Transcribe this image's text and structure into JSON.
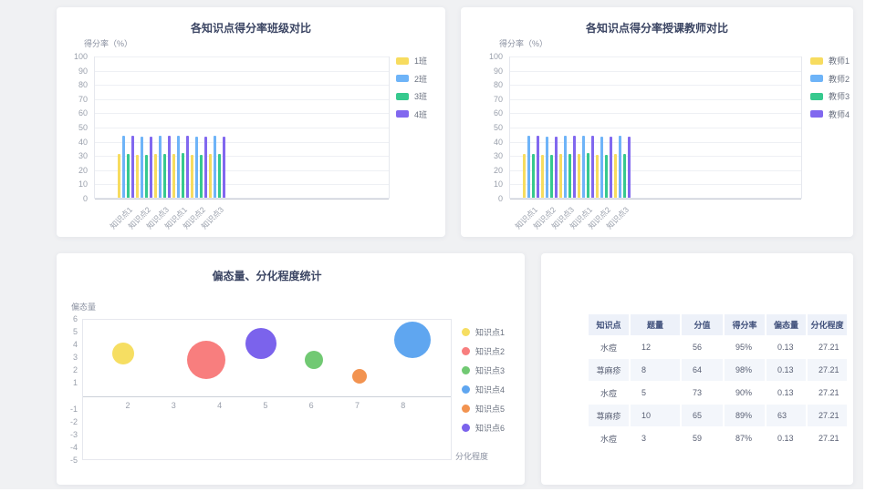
{
  "page": {
    "background": "#f0f1f3",
    "card_color": "#ffffff"
  },
  "chart_data": [
    {
      "type": "bar",
      "title": "各知识点得分率班级对比",
      "ylabel": "得分率（%）",
      "ylim": [
        0,
        100
      ],
      "y_ticks": [
        100,
        90,
        80,
        70,
        60,
        50,
        40,
        30,
        20,
        10,
        0
      ],
      "grid": "horizontal",
      "legend_position": "right",
      "categories": [
        "知识点1",
        "知识点2",
        "知识点3",
        "知识点1",
        "知识点2",
        "知识点3"
      ],
      "series": [
        {
          "name": "1班",
          "color": "#F7DC5F",
          "values": [
            31.5,
            31,
            31.5,
            31.5,
            31,
            31.5
          ]
        },
        {
          "name": "2班",
          "color": "#6EB4F8",
          "values": [
            44,
            43.5,
            44,
            44,
            43.5,
            44
          ]
        },
        {
          "name": "3班",
          "color": "#36C98E",
          "values": [
            31.5,
            31,
            31.5,
            32,
            31,
            31.5
          ]
        },
        {
          "name": "4班",
          "color": "#8168EF",
          "values": [
            44,
            43.5,
            44,
            44,
            43.5,
            43.5
          ]
        }
      ]
    },
    {
      "type": "bar",
      "title": "各知识点得分率授课教师对比",
      "ylabel": "得分率（%）",
      "ylim": [
        0,
        100
      ],
      "y_ticks": [
        100,
        90,
        80,
        70,
        60,
        50,
        40,
        30,
        20,
        10,
        0
      ],
      "grid": "horizontal",
      "legend_position": "right",
      "categories": [
        "知识点1",
        "知识点2",
        "知识点3",
        "知识点1",
        "知识点2",
        "知识点3"
      ],
      "series": [
        {
          "name": "教师1",
          "color": "#F7DC5F",
          "values": [
            31.5,
            31,
            31.5,
            31.5,
            31,
            31.5
          ]
        },
        {
          "name": "教师2",
          "color": "#6EB4F8",
          "values": [
            44,
            43.5,
            44,
            44,
            43.5,
            44
          ]
        },
        {
          "name": "教师3",
          "color": "#36C98E",
          "values": [
            31.5,
            31,
            31.5,
            32,
            31,
            31.5
          ]
        },
        {
          "name": "教师4",
          "color": "#8168EF",
          "values": [
            44,
            43.5,
            44,
            44,
            43.5,
            43.5
          ]
        }
      ]
    },
    {
      "type": "scatter",
      "title": "偏态量、分化程度统计",
      "ylabel": "偏态量",
      "xlabel": "分化程度",
      "xlim": [
        1,
        9
      ],
      "ylim": [
        -5,
        6
      ],
      "x_ticks": [
        2,
        3,
        4,
        5,
        6,
        7,
        8
      ],
      "y_ticks": [
        6,
        5,
        4,
        3,
        2,
        1,
        -1,
        -2,
        -3,
        -4,
        -5
      ],
      "grid": "none",
      "legend_position": "right",
      "points": [
        {
          "name": "知识点1",
          "x": 1.9,
          "y": 3.3,
          "r": 12,
          "color": "#F6DE62"
        },
        {
          "name": "知识点2",
          "x": 3.7,
          "y": 2.8,
          "r": 21,
          "color": "#F87E7E"
        },
        {
          "name": "知识点3",
          "x": 6.05,
          "y": 2.8,
          "r": 10,
          "color": "#71C973"
        },
        {
          "name": "知识点4",
          "x": 8.2,
          "y": 4.4,
          "r": 20,
          "color": "#5FA6F0"
        },
        {
          "name": "知识点5",
          "x": 7.05,
          "y": 1.5,
          "r": 8,
          "color": "#F29350"
        },
        {
          "name": "知识点6",
          "x": 4.9,
          "y": 4.1,
          "r": 17,
          "color": "#7B63EC"
        }
      ],
      "legend": [
        {
          "label": "知识点1",
          "color": "#F6DE62"
        },
        {
          "label": "知识点2",
          "color": "#F87E7E"
        },
        {
          "label": "知识点3",
          "color": "#71C973"
        },
        {
          "label": "知识点4",
          "color": "#5FA6F0"
        },
        {
          "label": "知识点5",
          "color": "#F29350"
        },
        {
          "label": "知识点6",
          "color": "#7B63EC"
        }
      ]
    },
    {
      "type": "table",
      "headers": [
        "知识点",
        "题量",
        "分值",
        "得分率",
        "偏态量",
        "分化程度"
      ],
      "rows": [
        [
          "水痘",
          "12",
          "56",
          "95%",
          "0.13",
          "27.21"
        ],
        [
          "荨麻疹",
          "8",
          "64",
          "98%",
          "0.13",
          "27.21"
        ],
        [
          "水痘",
          "5",
          "73",
          "90%",
          "0.13",
          "27.21"
        ],
        [
          "荨麻疹",
          "10",
          "65",
          "89%",
          "63",
          "27.21"
        ],
        [
          "水痘",
          "3",
          "59",
          "87%",
          "0.13",
          "27.21"
        ]
      ]
    }
  ]
}
